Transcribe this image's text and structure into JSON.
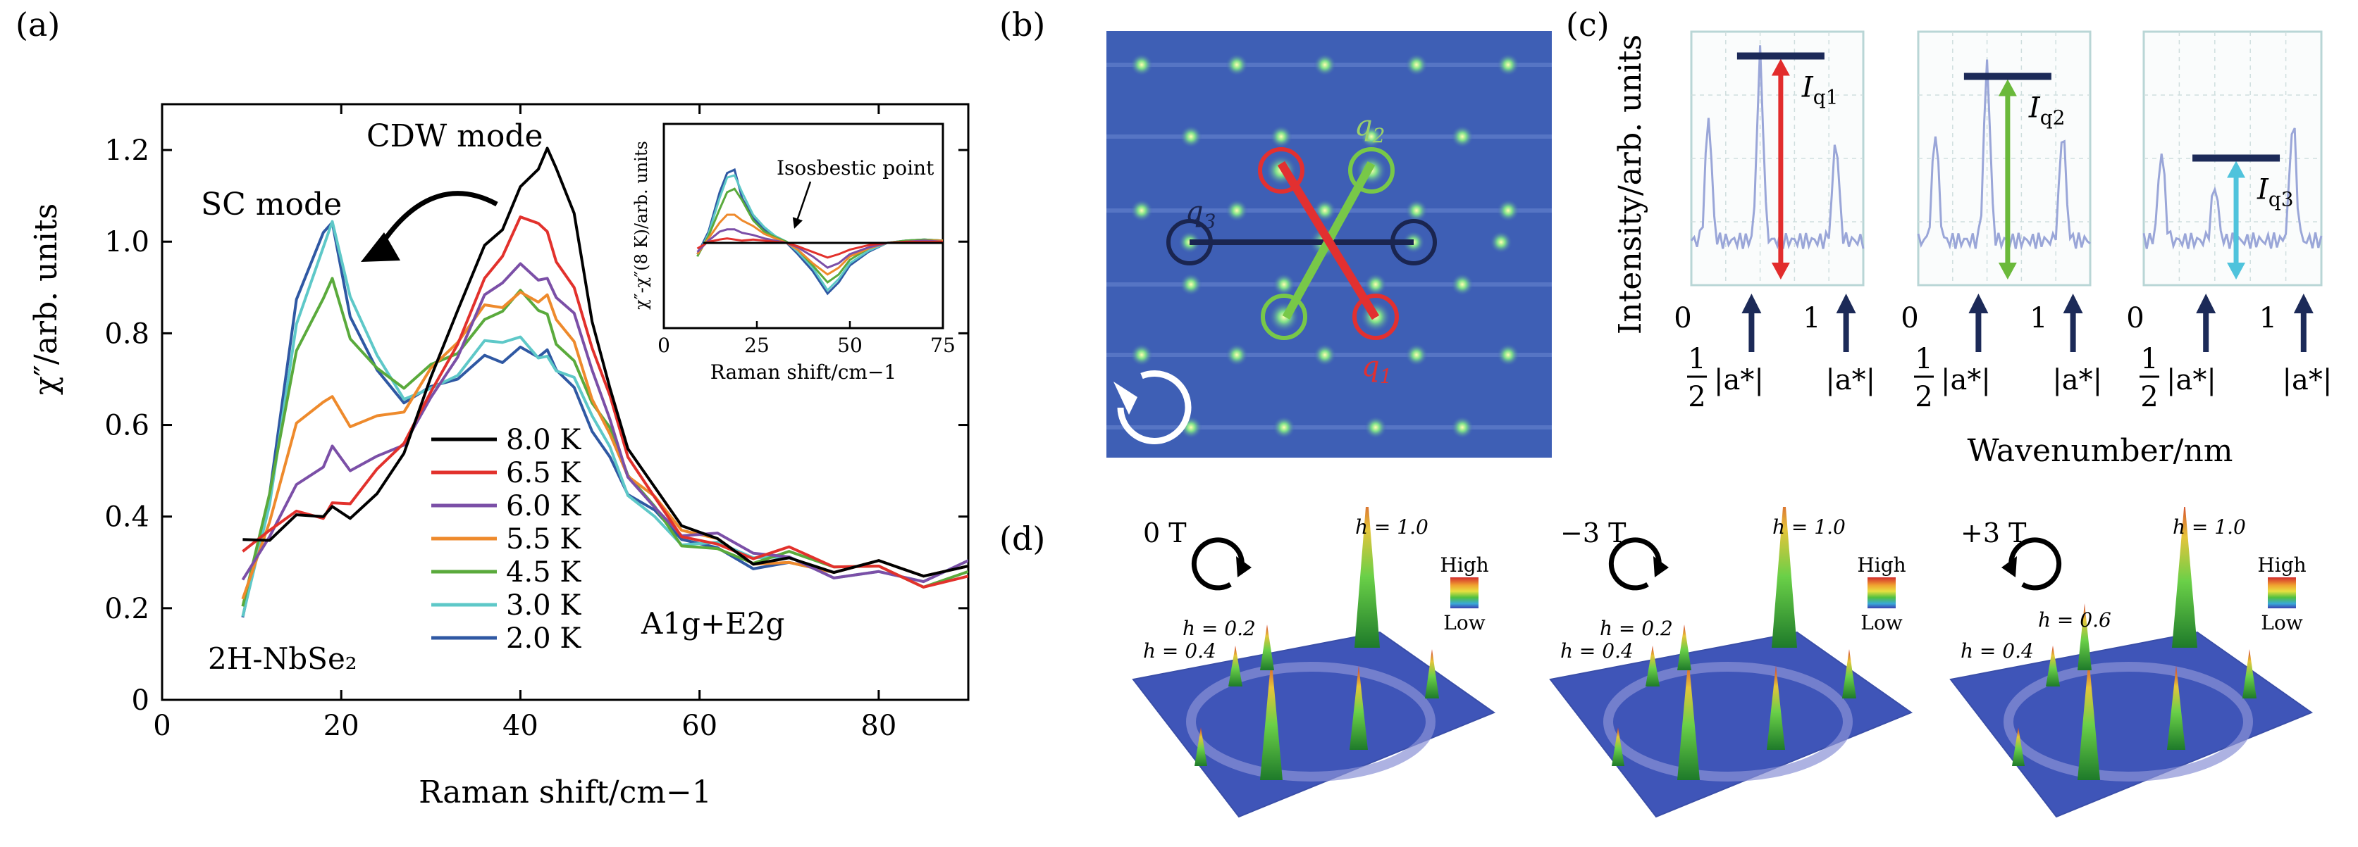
{
  "panels": {
    "a": {
      "label": "(a)"
    },
    "b": {
      "label": "(b)"
    },
    "c": {
      "label": "(c)"
    },
    "d": {
      "label": "(d)"
    }
  },
  "chart_data": [
    {
      "type": "line",
      "xlabel": "Raman shift/cm−1",
      "ylabel": "χ″/arb. units",
      "xlim": [
        0,
        90
      ],
      "ylim": [
        0,
        1.3
      ],
      "x_ticks": [
        "0",
        "20",
        "40",
        "60",
        "80"
      ],
      "y_ticks": [
        "0",
        "0.2",
        "0.4",
        "0.6",
        "0.8",
        "1.0",
        "1.2"
      ],
      "annotations": {
        "cdw": "CDW mode",
        "sc": "SC mode",
        "material": "2H-NbSe₂",
        "symmetry": "A1g+E2g"
      },
      "x": [
        9,
        12,
        15,
        18,
        19,
        21,
        24,
        27,
        30,
        33,
        36,
        38,
        40,
        42,
        43,
        44,
        46,
        48,
        50,
        52,
        55,
        58,
        62,
        66,
        70,
        75,
        80,
        85,
        90
      ],
      "series": [
        {
          "name": "8.0 K",
          "color": "#000000",
          "values": [
            0.35,
            0.36,
            0.38,
            0.4,
            0.41,
            0.42,
            0.45,
            0.55,
            0.68,
            0.85,
            0.98,
            1.05,
            1.12,
            1.17,
            1.18,
            1.16,
            1.05,
            0.85,
            0.68,
            0.56,
            0.44,
            0.38,
            0.34,
            0.32,
            0.31,
            0.29,
            0.28,
            0.27,
            0.28
          ]
        },
        {
          "name": "6.5 K",
          "color": "#e2312c",
          "values": [
            0.3,
            0.37,
            0.4,
            0.42,
            0.43,
            0.44,
            0.48,
            0.56,
            0.66,
            0.8,
            0.92,
            0.98,
            1.03,
            1.04,
            1.01,
            0.98,
            0.9,
            0.78,
            0.64,
            0.53,
            0.43,
            0.38,
            0.34,
            0.32,
            0.31,
            0.29,
            0.28,
            0.27,
            0.27
          ]
        },
        {
          "name": "6.0 K",
          "color": "#7b4fa7",
          "values": [
            0.25,
            0.38,
            0.47,
            0.52,
            0.53,
            0.5,
            0.52,
            0.58,
            0.66,
            0.76,
            0.86,
            0.91,
            0.94,
            0.94,
            0.92,
            0.89,
            0.82,
            0.72,
            0.6,
            0.51,
            0.42,
            0.37,
            0.34,
            0.32,
            0.3,
            0.29,
            0.28,
            0.27,
            0.28
          ]
        },
        {
          "name": "5.5 K",
          "color": "#ee8a2c",
          "values": [
            0.22,
            0.4,
            0.58,
            0.65,
            0.65,
            0.62,
            0.62,
            0.64,
            0.7,
            0.78,
            0.85,
            0.88,
            0.89,
            0.88,
            0.86,
            0.83,
            0.77,
            0.68,
            0.58,
            0.5,
            0.42,
            0.37,
            0.34,
            0.32,
            0.3,
            0.29,
            0.28,
            0.27,
            0.28
          ]
        },
        {
          "name": "4.5 K",
          "color": "#5aaa3c",
          "values": [
            0.18,
            0.45,
            0.75,
            0.9,
            0.92,
            0.8,
            0.7,
            0.68,
            0.72,
            0.78,
            0.83,
            0.86,
            0.87,
            0.85,
            0.83,
            0.8,
            0.74,
            0.66,
            0.57,
            0.49,
            0.41,
            0.36,
            0.33,
            0.31,
            0.3,
            0.29,
            0.28,
            0.27,
            0.28
          ]
        },
        {
          "name": "3.0 K",
          "color": "#5ec8c8",
          "values": [
            0.17,
            0.45,
            0.82,
            1.0,
            1.02,
            0.88,
            0.74,
            0.68,
            0.68,
            0.72,
            0.76,
            0.78,
            0.78,
            0.77,
            0.75,
            0.73,
            0.68,
            0.62,
            0.54,
            0.47,
            0.4,
            0.35,
            0.32,
            0.31,
            0.3,
            0.29,
            0.28,
            0.27,
            0.28
          ]
        },
        {
          "name": "2.0 K",
          "color": "#2f58a3",
          "values": [
            0.18,
            0.46,
            0.85,
            1.02,
            1.03,
            0.86,
            0.72,
            0.66,
            0.66,
            0.7,
            0.74,
            0.76,
            0.77,
            0.76,
            0.74,
            0.72,
            0.67,
            0.61,
            0.53,
            0.46,
            0.39,
            0.35,
            0.32,
            0.31,
            0.3,
            0.29,
            0.28,
            0.27,
            0.28
          ]
        }
      ],
      "inset": {
        "ylabel": "χ″-χ″(8 K)/arb. units",
        "xlabel": "Raman shift/cm−1",
        "xlim": [
          0,
          75
        ],
        "x_ticks": [
          "0",
          "25",
          "50",
          "75"
        ],
        "annotation": "Isosbestic point",
        "x": [
          9,
          12,
          15,
          17,
          19,
          21,
          24,
          27,
          30,
          33,
          36,
          40,
          44,
          47,
          50,
          55,
          60,
          65,
          70,
          75
        ],
        "series": [
          {
            "color": "#2f58a3",
            "values": [
              -0.1,
              0.1,
              0.45,
              0.62,
              0.65,
              0.4,
              0.22,
              0.12,
              0.05,
              0.0,
              -0.1,
              -0.25,
              -0.45,
              -0.35,
              -0.2,
              -0.08,
              0.0,
              0.02,
              0.03,
              0.02
            ]
          },
          {
            "color": "#5ec8c8",
            "values": [
              -0.12,
              0.08,
              0.4,
              0.58,
              0.6,
              0.45,
              0.25,
              0.14,
              0.06,
              0.01,
              -0.08,
              -0.22,
              -0.42,
              -0.32,
              -0.18,
              -0.07,
              0.0,
              0.02,
              0.03,
              0.02
            ]
          },
          {
            "color": "#5aaa3c",
            "values": [
              -0.12,
              0.06,
              0.3,
              0.45,
              0.48,
              0.38,
              0.2,
              0.1,
              0.05,
              0.01,
              -0.06,
              -0.2,
              -0.35,
              -0.28,
              -0.15,
              -0.05,
              0.0,
              0.02,
              0.03,
              0.02
            ]
          },
          {
            "color": "#ee8a2c",
            "values": [
              -0.1,
              0.04,
              0.18,
              0.25,
              0.25,
              0.2,
              0.15,
              0.08,
              0.04,
              0.0,
              -0.06,
              -0.18,
              -0.28,
              -0.22,
              -0.12,
              -0.05,
              0.0,
              0.01,
              0.02,
              0.02
            ]
          },
          {
            "color": "#7b4fa7",
            "values": [
              -0.08,
              0.02,
              0.1,
              0.12,
              0.12,
              0.09,
              0.07,
              0.04,
              0.02,
              0.0,
              -0.04,
              -0.12,
              -0.22,
              -0.18,
              -0.1,
              -0.04,
              0.0,
              0.01,
              0.02,
              0.01
            ]
          },
          {
            "color": "#e2312c",
            "values": [
              -0.05,
              0.01,
              0.03,
              0.04,
              0.03,
              0.02,
              0.03,
              0.02,
              0.01,
              0.0,
              -0.03,
              -0.08,
              -0.13,
              -0.1,
              -0.06,
              -0.02,
              0.0,
              0.01,
              0.01,
              0.01
            ]
          }
        ]
      }
    },
    {
      "type": "line",
      "ylabel": "Intensity/arb. units",
      "xlabel": "Wavenumber/nm",
      "subpanels": [
        {
          "tick0": "0",
          "tick1": "1",
          "arrow_label": "I",
          "arrow_sub": "q1",
          "arrow_color": "#e22c2c",
          "arrow_fraction": 0.95
        },
        {
          "tick0": "0",
          "tick1": "1",
          "arrow_label": "I",
          "arrow_sub": "q2",
          "arrow_color": "#6ab93a",
          "arrow_fraction": 0.85
        },
        {
          "tick0": "0",
          "tick1": "1",
          "arrow_label": "I",
          "arrow_sub": "q3",
          "arrow_color": "#4fc3dc",
          "arrow_fraction": 0.45
        }
      ],
      "half_label": "1",
      "half_den": "2",
      "astar_half": "|a*|",
      "astar": "|a*|"
    }
  ],
  "panel_b": {
    "q1": "q",
    "q1_sub": "1",
    "q2": "q",
    "q2_sub": "2",
    "q3": "q",
    "q3_sub": "3"
  },
  "panel_d": {
    "legend_high": "High",
    "legend_low": "Low",
    "fields": [
      {
        "field": "0 T",
        "h_top": "h = 1.0",
        "h_mid": "h = 0.2",
        "h_low": "h = 0.4",
        "rotation": "ccw"
      },
      {
        "field": "−3 T",
        "h_top": "h = 1.0",
        "h_mid": "h = 0.2",
        "h_low": "h = 0.4",
        "rotation": "ccw"
      },
      {
        "field": "+3 T",
        "h_top": "h = 1.0",
        "h_mid": "h = 0.6",
        "h_low": "h = 0.4",
        "rotation": "cw"
      }
    ]
  }
}
